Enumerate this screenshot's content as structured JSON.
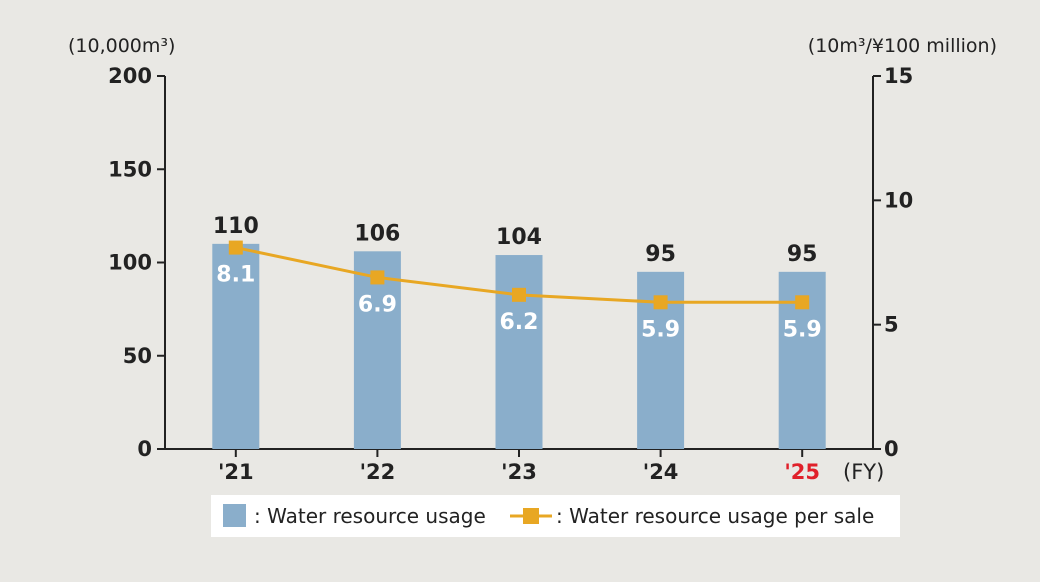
{
  "chart_data": {
    "type": "bar",
    "categories": [
      "'21",
      "'22",
      "'23",
      "'24",
      "'25"
    ],
    "x_unit": "(FY)",
    "highlight_category_index": 4,
    "highlight_color": "#e0202a",
    "left_axis": {
      "unit": "(10,000m³)",
      "ylim": [
        0,
        200
      ],
      "ticks": [
        0,
        50,
        100,
        150,
        200
      ]
    },
    "right_axis": {
      "unit": "(10m³/¥100 million)",
      "ylim": [
        0,
        15
      ],
      "ticks": [
        0,
        5,
        10,
        15
      ]
    },
    "series": [
      {
        "name": "Water resource usage",
        "kind": "bar",
        "axis": "left",
        "values": [
          110,
          106,
          104,
          95,
          95
        ],
        "labels": [
          "110",
          "106",
          "104",
          "95",
          "95"
        ],
        "color": "#8aaecb"
      },
      {
        "name": "Water resource usage per sale",
        "kind": "line",
        "axis": "right",
        "values": [
          8.1,
          6.9,
          6.2,
          5.9,
          5.9
        ],
        "labels": [
          "8.1",
          "6.9",
          "6.2",
          "5.9",
          "5.9"
        ],
        "color": "#e8a723"
      }
    ],
    "legend": {
      "position": "bottom",
      "items": [
        {
          "label": ": Water resource usage",
          "marker": "bar-swatch"
        },
        {
          "label": ": Water resource usage per sale",
          "marker": "line-square"
        }
      ]
    },
    "grid": false
  }
}
